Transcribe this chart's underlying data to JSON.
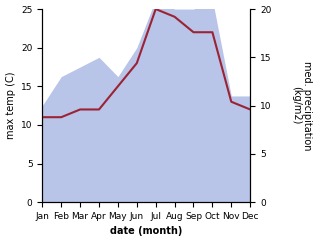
{
  "months": [
    "Jan",
    "Feb",
    "Mar",
    "Apr",
    "May",
    "Jun",
    "Jul",
    "Aug",
    "Sep",
    "Oct",
    "Nov",
    "Dec"
  ],
  "temp": [
    11,
    11,
    12,
    12,
    15,
    18,
    25,
    24,
    22,
    22,
    13,
    12
  ],
  "precip": [
    10,
    13,
    14,
    15,
    13,
    16,
    21,
    20,
    20,
    21,
    11,
    11
  ],
  "temp_color": "#9b2335",
  "precip_fill_color": "#b8c4e8",
  "ylabel_left": "max temp (C)",
  "ylabel_right": "med. precipitation\n(kg/m2)",
  "xlabel": "date (month)",
  "ylim_left": [
    0,
    25
  ],
  "ylim_right": [
    0,
    20
  ],
  "left_yticks": [
    0,
    5,
    10,
    15,
    20,
    25
  ],
  "right_yticks": [
    0,
    5,
    10,
    15,
    20
  ],
  "background_color": "#ffffff",
  "temp_linewidth": 1.5,
  "label_fontsize": 7,
  "tick_fontsize": 6.5
}
